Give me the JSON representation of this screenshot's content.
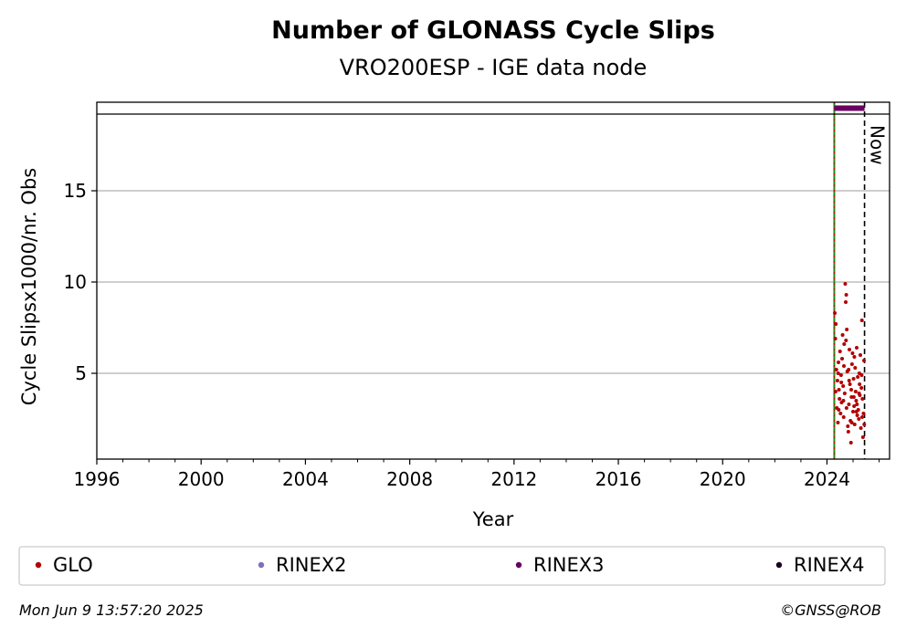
{
  "chart_data": {
    "type": "scatter",
    "title": "Number of GLONASS Cycle Slips",
    "subtitle": "VRO200ESP - IGE data node",
    "xlabel": "Year",
    "ylabel": "Cycle Slipsx1000/nr. Obs",
    "xlim": [
      1996,
      2026.4
    ],
    "ylim": [
      0.3,
      19.2
    ],
    "x_ticks": [
      1996,
      2000,
      2004,
      2008,
      2012,
      2016,
      2020,
      2024
    ],
    "x_tick_labels": [
      "1996",
      "2000",
      "2004",
      "2008",
      "2012",
      "2016",
      "2020",
      "2024"
    ],
    "y_ticks": [
      5,
      10,
      15
    ],
    "y_tick_labels": [
      "5",
      "10",
      "15"
    ],
    "grid": "horizontal",
    "now_label": "Now",
    "now_x": 2025.44,
    "start_marker_x": 2024.28,
    "rinex3_bar": [
      2024.28,
      2025.44
    ],
    "series": [
      {
        "name": "GLO",
        "color": "#b30000",
        "points": [
          [
            2024.3,
            8.3
          ],
          [
            2024.32,
            6.9
          ],
          [
            2024.34,
            7.7
          ],
          [
            2024.36,
            5.2
          ],
          [
            2024.38,
            3.1
          ],
          [
            2024.4,
            4.6
          ],
          [
            2024.42,
            2.3
          ],
          [
            2024.44,
            5.6
          ],
          [
            2024.46,
            4.1
          ],
          [
            2024.48,
            3.6
          ],
          [
            2024.5,
            6.2
          ],
          [
            2024.52,
            2.8
          ],
          [
            2024.54,
            4.9
          ],
          [
            2024.56,
            3.4
          ],
          [
            2024.58,
            5.8
          ],
          [
            2024.6,
            7.1
          ],
          [
            2024.62,
            4.3
          ],
          [
            2024.64,
            2.6
          ],
          [
            2024.66,
            6.6
          ],
          [
            2024.68,
            3.9
          ],
          [
            2024.7,
            9.9
          ],
          [
            2024.72,
            8.9
          ],
          [
            2024.74,
            9.3
          ],
          [
            2024.76,
            7.4
          ],
          [
            2024.78,
            5.1
          ],
          [
            2024.8,
            2.1
          ],
          [
            2024.82,
            1.8
          ],
          [
            2024.84,
            3.3
          ],
          [
            2024.86,
            6.3
          ],
          [
            2024.88,
            4.4
          ],
          [
            2024.9,
            2.4
          ],
          [
            2024.92,
            1.2
          ],
          [
            2024.94,
            3.7
          ],
          [
            2024.96,
            5.5
          ],
          [
            2024.98,
            6.1
          ],
          [
            2025.0,
            2.9
          ],
          [
            2025.02,
            4.7
          ],
          [
            2025.04,
            3.2
          ],
          [
            2025.06,
            2.2
          ],
          [
            2025.08,
            5.3
          ],
          [
            2025.1,
            4.0
          ],
          [
            2025.12,
            3.5
          ],
          [
            2025.14,
            6.4
          ],
          [
            2025.16,
            2.7
          ],
          [
            2025.18,
            4.8
          ],
          [
            2025.2,
            3.0
          ],
          [
            2025.22,
            2.5
          ],
          [
            2025.24,
            5.0
          ],
          [
            2025.26,
            3.8
          ],
          [
            2025.28,
            6.0
          ],
          [
            2025.3,
            2.0
          ],
          [
            2025.32,
            4.2
          ],
          [
            2025.34,
            7.9
          ],
          [
            2025.36,
            3.6
          ],
          [
            2025.38,
            1.5
          ],
          [
            2025.4,
            2.8
          ],
          [
            2025.42,
            5.7
          ],
          [
            2024.45,
            3.0
          ],
          [
            2024.55,
            4.5
          ],
          [
            2024.65,
            5.4
          ],
          [
            2024.75,
            3.1
          ],
          [
            2024.85,
            4.6
          ],
          [
            2024.95,
            2.3
          ],
          [
            2025.05,
            5.9
          ],
          [
            2025.15,
            3.3
          ],
          [
            2025.25,
            4.4
          ],
          [
            2025.35,
            2.6
          ],
          [
            2024.33,
            4.0
          ],
          [
            2024.43,
            5.0
          ],
          [
            2024.63,
            3.5
          ],
          [
            2024.73,
            6.8
          ],
          [
            2024.83,
            5.2
          ],
          [
            2024.93,
            4.1
          ],
          [
            2025.03,
            3.7
          ],
          [
            2025.13,
            2.9
          ],
          [
            2025.23,
            3.9
          ],
          [
            2025.33,
            4.9
          ],
          [
            2025.43,
            2.2
          ]
        ]
      },
      {
        "name": "RINEX2",
        "color": "#7b72b8",
        "points": []
      },
      {
        "name": "RINEX3",
        "color": "#6a0060",
        "points": []
      },
      {
        "name": "RINEX4",
        "color": "#1a0020",
        "points": []
      }
    ]
  },
  "footer": {
    "timestamp": "Mon Jun  9 13:57:20 2025",
    "copyright": "©GNSS@ROB"
  }
}
